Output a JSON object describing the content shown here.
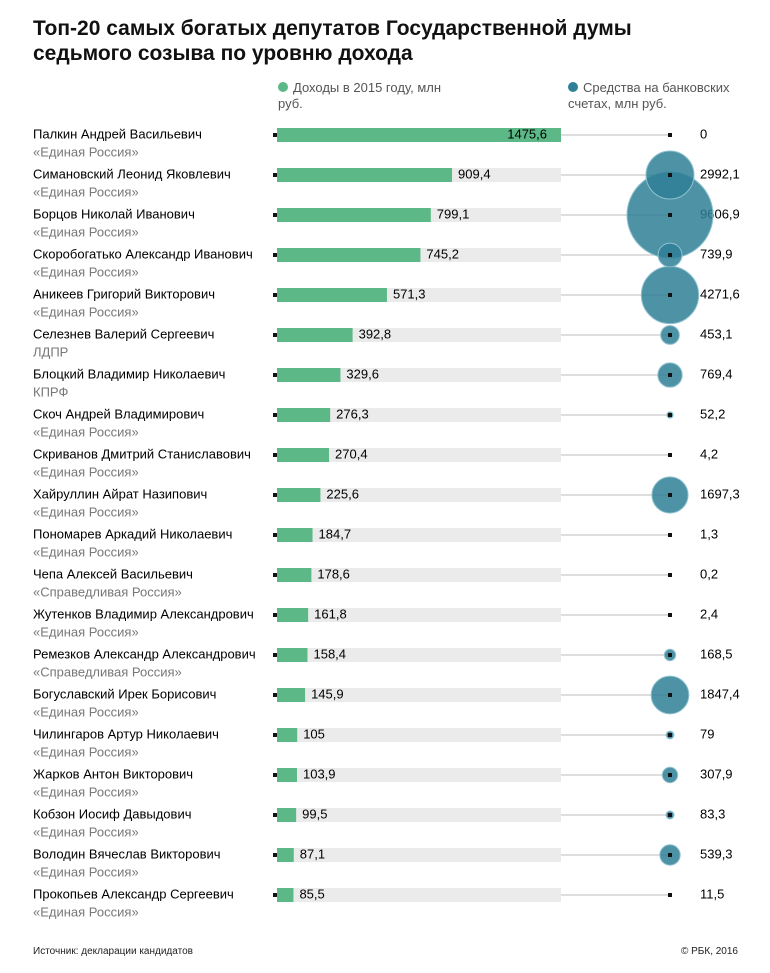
{
  "chart_data": {
    "type": "bar_bubble",
    "title": "Топ-20 самых богатых депутатов Государственной думы седьмого созыва по уровню дохода",
    "categories": [
      "Палкин Андрей Васильевич",
      "Симановский Леонид Яковлевич",
      "Борцов Николай Иванович",
      "Скоробогатько Александр Иванович",
      "Аникеев Григорий Викторович",
      "Селезнев Валерий Сергеевич",
      "Блоцкий Владимир Николаевич",
      "Скоч Андрей Владимирович",
      "Скриванов Дмитрий Станиславович",
      "Хайруллин Айрат Назипович",
      "Пономарев Аркадий Николаевич",
      "Чепа Алексей Васильевич",
      "Жутенков Владимир Александрович",
      "Ремезков Александр Александрович",
      "Богуславский Ирек Борисович",
      "Чилингаров Артур Николаевич",
      "Жарков Антон Викторович",
      "Кобзон Иосиф Давыдович",
      "Володин Вячеслав Викторович",
      "Прокопьев Александр Сергеевич"
    ],
    "parties": [
      "«Единая Россия»",
      "«Единая Россия»",
      "«Единая Россия»",
      "«Единая Россия»",
      "«Единая Россия»",
      "ЛДПР",
      "КПРФ",
      "«Единая Россия»",
      "«Единая Россия»",
      "«Единая Россия»",
      "«Единая Россия»",
      "«Справедливая Россия»",
      "«Единая Россия»",
      "«Справедливая Россия»",
      "«Единая Россия»",
      "«Единая Россия»",
      "«Единая Россия»",
      "«Единая Россия»",
      "«Единая Россия»",
      "«Единая Россия»"
    ],
    "series": [
      {
        "name": "Доходы в 2015 году, млн руб.",
        "color": "#5cb887",
        "values": [
          1475.6,
          909.4,
          799.1,
          745.2,
          571.3,
          392.8,
          329.6,
          276.3,
          270.4,
          225.6,
          184.7,
          178.6,
          161.8,
          158.4,
          145.9,
          105,
          103.9,
          99.5,
          87.1,
          85.5
        ],
        "value_labels": [
          "1475,6",
          "909,4",
          "799,1",
          "745,2",
          "571,3",
          "392,8",
          "329,6",
          "276,3",
          "270,4",
          "225,6",
          "184,7",
          "178,6",
          "161,8",
          "158,4",
          "145,9",
          "105",
          "103,9",
          "99,5",
          "87,1",
          "85,5"
        ]
      },
      {
        "name": "Средства на банковских счетах, млн руб.",
        "color": "#2f7f96",
        "values": [
          0,
          2992.1,
          9606.9,
          739.9,
          4271.6,
          453.1,
          769.4,
          52.2,
          4.2,
          1697.3,
          1.3,
          0.2,
          2.4,
          168.5,
          1847.4,
          79,
          307.9,
          83.3,
          539.3,
          11.5
        ],
        "value_labels": [
          "0",
          "2992,1",
          "9606,9",
          "739,9",
          "4271,6",
          "453,1",
          "769,4",
          "52,2",
          "4,2",
          "1697,3",
          "1,3",
          "0,2",
          "2,4",
          "168,5",
          "1847,4",
          "79",
          "307,9",
          "83,3",
          "539,3",
          "11,5"
        ]
      }
    ],
    "xlim": [
      0,
      1475.6
    ],
    "source": "Источник: декларации кандидатов",
    "copyright": "© РБК, 2016"
  }
}
